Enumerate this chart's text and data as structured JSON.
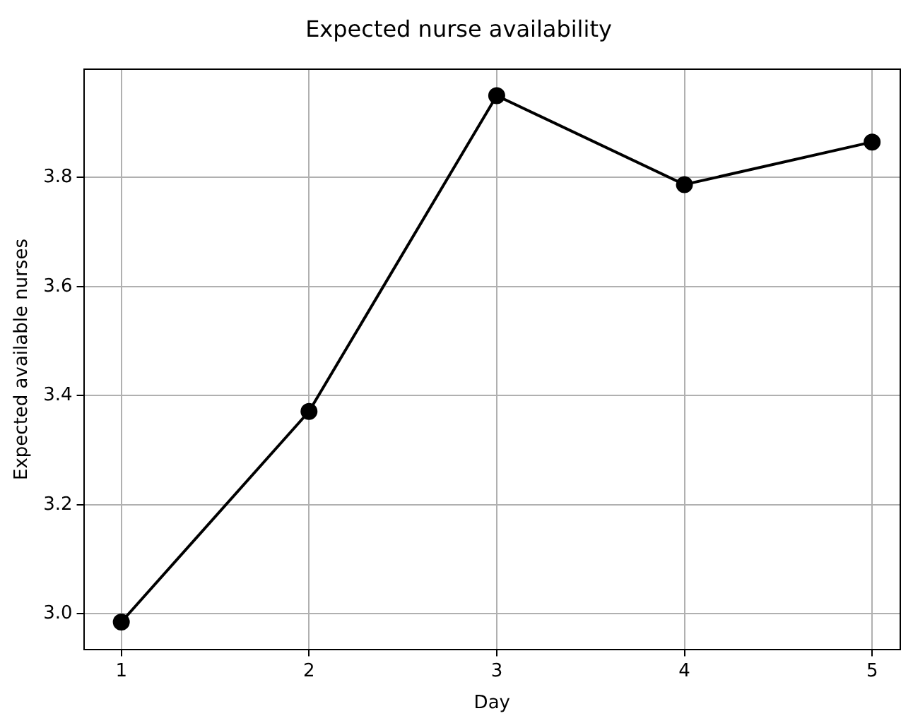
{
  "chart_data": {
    "type": "line",
    "title": "Expected nurse availability",
    "xlabel": "Day",
    "ylabel": "Expected available nurses",
    "x": [
      1,
      2,
      3,
      4,
      5
    ],
    "series": [
      {
        "color": "#000000",
        "values": [
          2.985,
          3.371,
          3.95,
          3.787,
          3.865
        ]
      }
    ],
    "xlim": [
      0.8,
      5.15
    ],
    "xticks": [
      1,
      2,
      3,
      4,
      5
    ],
    "ylim": [
      2.935,
      3.998
    ],
    "yticks": [
      {
        "value": 3.0,
        "label": "3.0"
      },
      {
        "value": 3.2,
        "label": "3.2"
      },
      {
        "value": 3.4,
        "label": "3.4"
      },
      {
        "value": 3.6,
        "label": "3.6"
      },
      {
        "value": 3.8,
        "label": "3.8"
      }
    ],
    "grid": true,
    "marker": "circle",
    "line_style": "solid"
  }
}
